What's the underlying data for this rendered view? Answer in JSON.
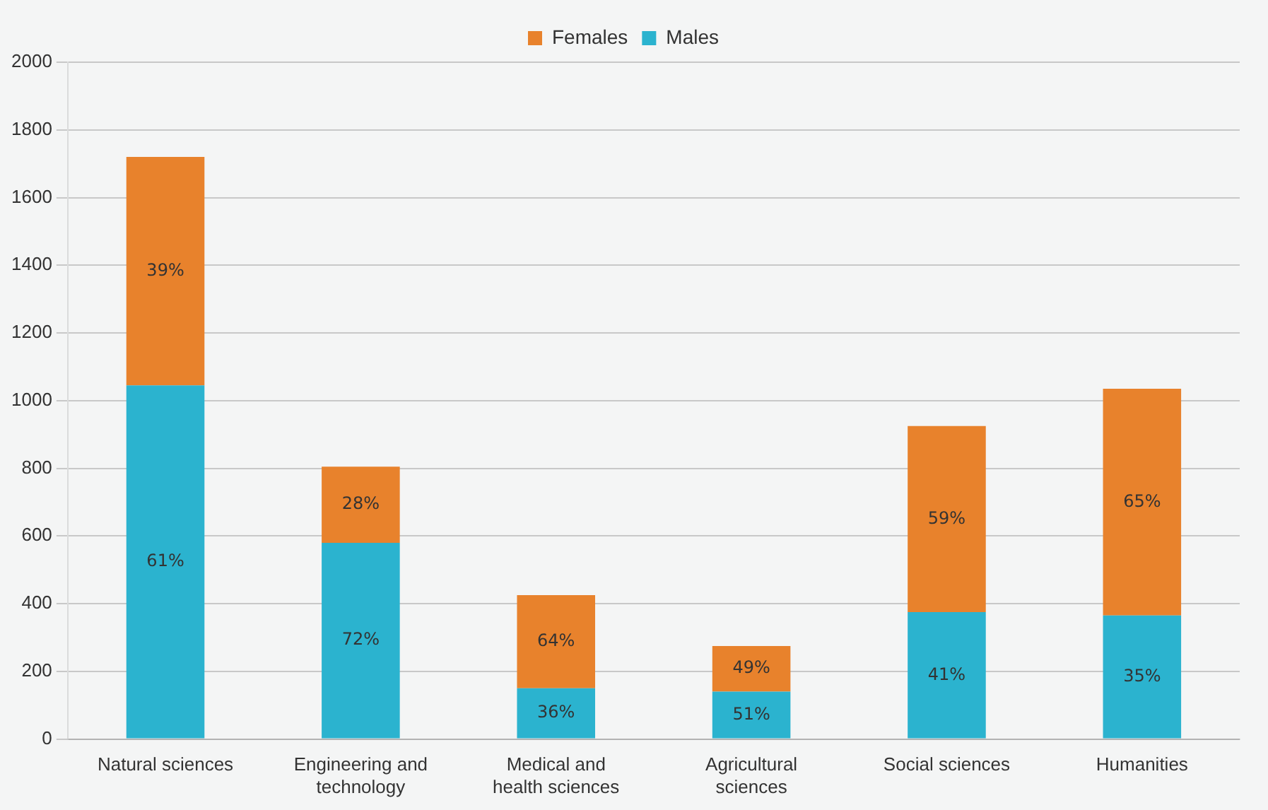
{
  "chart_data": {
    "type": "bar",
    "stacked": true,
    "categories": [
      "Natural sciences",
      "Engineering and technology",
      "Medical and health sciences",
      "Agricultural sciences",
      "Social sciences",
      "Humanities"
    ],
    "series": [
      {
        "name": "Males",
        "color": "#2bb3cf",
        "values": [
          1045,
          580,
          150,
          140,
          375,
          365
        ]
      },
      {
        "name": "Females",
        "color": "#e8822c",
        "values": [
          675,
          225,
          275,
          135,
          550,
          670
        ]
      }
    ],
    "annotations": [
      "61%",
      "72%",
      "36%",
      "51%",
      "41%",
      "35%",
      "39%",
      "28%",
      "64%",
      "49%",
      "59%",
      "65%"
    ],
    "ylim": [
      0,
      2000
    ],
    "yticks": [
      0,
      200,
      400,
      600,
      800,
      1000,
      1200,
      1400,
      1600,
      1800,
      2000
    ],
    "grid": "y",
    "legend": "top"
  }
}
